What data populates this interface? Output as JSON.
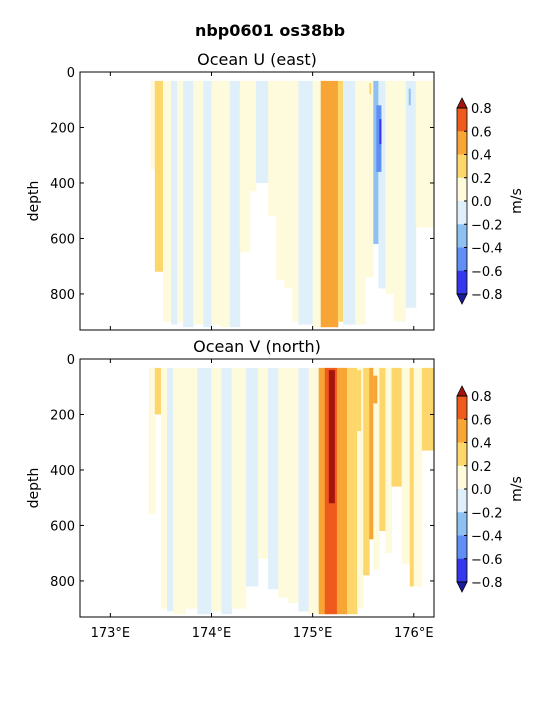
{
  "figure_title": "nbp0601 os38bb",
  "colors": {
    "levels": [
      -0.8,
      -0.6,
      -0.4,
      -0.2,
      0.0,
      0.2,
      0.4,
      0.6,
      0.8
    ],
    "bins": [
      "#3636ee",
      "#5f8ef4",
      "#8ec1f2",
      "#dff0fa",
      "#fefadc",
      "#fdd66c",
      "#f7a534",
      "#ef5b1c"
    ],
    "under": "#1a1aa0",
    "over": "#a5150d"
  },
  "chart_data": [
    {
      "type": "heatmap",
      "title": "Ocean U (east)",
      "ylabel": "depth",
      "xlabel": "",
      "x_ticks": [
        "173°E",
        "174°E",
        "175°E",
        "176°E"
      ],
      "x_tick_values": [
        173,
        174,
        175,
        176
      ],
      "y_ticks": [
        "0",
        "200",
        "400",
        "600",
        "800"
      ],
      "y_tick_values": [
        0,
        200,
        400,
        600,
        800
      ],
      "xlim": [
        172.7,
        176.2
      ],
      "ylim": [
        930,
        0
      ],
      "colorbar": {
        "label": "m/s",
        "ticks": [
          "0.8",
          "0.6",
          "0.4",
          "0.2",
          "0.0",
          "−0.2",
          "−0.4",
          "−0.6",
          "−0.8"
        ],
        "extend": "both"
      },
      "columns": [
        {
          "lon0": 173.4,
          "lon1": 173.44,
          "depth_max": 350,
          "value": 0.15
        },
        {
          "lon0": 173.44,
          "lon1": 173.52,
          "depth_max": 720,
          "value": 0.25
        },
        {
          "lon0": 173.52,
          "lon1": 173.6,
          "depth_max": 900,
          "value": 0.1
        },
        {
          "lon0": 173.6,
          "lon1": 173.66,
          "depth_max": 910,
          "value": -0.1
        },
        {
          "lon0": 173.66,
          "lon1": 173.72,
          "depth_max": 900,
          "value": 0.05
        },
        {
          "lon0": 173.72,
          "lon1": 173.82,
          "depth_max": 920,
          "value": -0.1
        },
        {
          "lon0": 173.82,
          "lon1": 173.92,
          "depth_max": 910,
          "value": 0.12
        },
        {
          "lon0": 173.92,
          "lon1": 174.0,
          "depth_max": 920,
          "value": -0.05
        },
        {
          "lon0": 174.0,
          "lon1": 174.08,
          "depth_max": 910,
          "value": 0.1
        },
        {
          "lon0": 174.08,
          "lon1": 174.18,
          "depth_max": 920,
          "value": 0.05
        },
        {
          "lon0": 174.18,
          "lon1": 174.28,
          "depth_max": 920,
          "value": -0.1
        },
        {
          "lon0": 174.28,
          "lon1": 174.38,
          "depth_max": 650,
          "value": 0.05
        },
        {
          "lon0": 174.38,
          "lon1": 174.44,
          "depth_max": 430,
          "value": 0.05
        },
        {
          "lon0": 174.44,
          "lon1": 174.56,
          "depth_max": 400,
          "value": -0.1
        },
        {
          "lon0": 174.56,
          "lon1": 174.64,
          "depth_max": 520,
          "value": 0.05
        },
        {
          "lon0": 174.64,
          "lon1": 174.72,
          "depth_max": 750,
          "value": 0.1
        },
        {
          "lon0": 174.72,
          "lon1": 174.8,
          "depth_max": 780,
          "value": 0.05
        },
        {
          "lon0": 174.8,
          "lon1": 174.86,
          "depth_max": 900,
          "value": 0.1
        },
        {
          "lon0": 174.86,
          "lon1": 175.0,
          "depth_max": 910,
          "value": -0.1
        },
        {
          "lon0": 175.0,
          "lon1": 175.08,
          "depth_max": 920,
          "value": 0.15
        },
        {
          "lon0": 175.08,
          "lon1": 175.25,
          "depth_max": 920,
          "value": 0.45
        },
        {
          "lon0": 175.25,
          "lon1": 175.3,
          "depth_max": 900,
          "value": 0.25
        },
        {
          "lon0": 175.3,
          "lon1": 175.42,
          "depth_max": 910,
          "value": -0.1
        },
        {
          "lon0": 175.42,
          "lon1": 175.52,
          "depth_max": 910,
          "value": 0.1
        },
        {
          "lon0": 175.52,
          "lon1": 175.6,
          "depth_max": 740,
          "value": 0.05
        },
        {
          "lon0": 175.6,
          "lon1": 175.65,
          "depth_max": 620,
          "value": -0.2
        },
        {
          "lon0": 175.65,
          "lon1": 175.72,
          "depth_max": 780,
          "value": -0.05
        },
        {
          "lon0": 175.72,
          "lon1": 175.8,
          "depth_max": 800,
          "value": 0.05
        },
        {
          "lon0": 175.8,
          "lon1": 175.92,
          "depth_max": 900,
          "value": 0.08
        },
        {
          "lon0": 175.92,
          "lon1": 176.02,
          "depth_max": 850,
          "value": -0.1
        },
        {
          "lon0": 176.02,
          "lon1": 176.2,
          "depth_max": 560,
          "value": 0.05
        }
      ],
      "patches": [
        {
          "lon0": 175.63,
          "lon1": 175.68,
          "d0": 120,
          "d1": 360,
          "value": -0.45
        },
        {
          "lon0": 175.66,
          "lon1": 175.68,
          "d0": 170,
          "d1": 260,
          "value": -0.65
        },
        {
          "lon0": 175.56,
          "lon1": 175.58,
          "d0": 40,
          "d1": 80,
          "value": 0.3
        },
        {
          "lon0": 175.95,
          "lon1": 175.97,
          "d0": 60,
          "d1": 120,
          "value": -0.3
        }
      ]
    },
    {
      "type": "heatmap",
      "title": "Ocean V (north)",
      "ylabel": "depth",
      "xlabel": "",
      "x_ticks": [
        "173°E",
        "174°E",
        "175°E",
        "176°E"
      ],
      "x_tick_values": [
        173,
        174,
        175,
        176
      ],
      "y_ticks": [
        "0",
        "200",
        "400",
        "600",
        "800"
      ],
      "y_tick_values": [
        0,
        200,
        400,
        600,
        800
      ],
      "xlim": [
        172.7,
        176.2
      ],
      "ylim": [
        930,
        0
      ],
      "colorbar": {
        "label": "m/s",
        "ticks": [
          "0.8",
          "0.6",
          "0.4",
          "0.2",
          "0.0",
          "−0.2",
          "−0.4",
          "−0.6",
          "−0.8"
        ],
        "extend": "both"
      },
      "columns": [
        {
          "lon0": 173.38,
          "lon1": 173.44,
          "depth_max": 560,
          "value": 0.1
        },
        {
          "lon0": 173.44,
          "lon1": 173.5,
          "depth_max": 200,
          "value": 0.25
        },
        {
          "lon0": 173.5,
          "lon1": 173.56,
          "depth_max": 900,
          "value": 0.05
        },
        {
          "lon0": 173.56,
          "lon1": 173.62,
          "depth_max": 910,
          "value": -0.1
        },
        {
          "lon0": 173.62,
          "lon1": 173.74,
          "depth_max": 920,
          "value": 0.05
        },
        {
          "lon0": 173.74,
          "lon1": 173.86,
          "depth_max": 900,
          "value": 0.1
        },
        {
          "lon0": 173.86,
          "lon1": 174.0,
          "depth_max": 920,
          "value": -0.1
        },
        {
          "lon0": 174.0,
          "lon1": 174.1,
          "depth_max": 910,
          "value": 0.05
        },
        {
          "lon0": 174.1,
          "lon1": 174.2,
          "depth_max": 920,
          "value": -0.1
        },
        {
          "lon0": 174.2,
          "lon1": 174.34,
          "depth_max": 900,
          "value": 0.05
        },
        {
          "lon0": 174.34,
          "lon1": 174.46,
          "depth_max": 820,
          "value": -0.08
        },
        {
          "lon0": 174.46,
          "lon1": 174.56,
          "depth_max": 720,
          "value": 0.05
        },
        {
          "lon0": 174.56,
          "lon1": 174.66,
          "depth_max": 830,
          "value": -0.1
        },
        {
          "lon0": 174.66,
          "lon1": 174.76,
          "depth_max": 860,
          "value": 0.08
        },
        {
          "lon0": 174.76,
          "lon1": 174.86,
          "depth_max": 880,
          "value": 0.05
        },
        {
          "lon0": 174.86,
          "lon1": 174.96,
          "depth_max": 910,
          "value": -0.1
        },
        {
          "lon0": 174.96,
          "lon1": 175.06,
          "depth_max": 920,
          "value": 0.1
        },
        {
          "lon0": 175.06,
          "lon1": 175.12,
          "depth_max": 920,
          "value": 0.45
        },
        {
          "lon0": 175.12,
          "lon1": 175.24,
          "depth_max": 920,
          "value": 0.65
        },
        {
          "lon0": 175.24,
          "lon1": 175.34,
          "depth_max": 920,
          "value": 0.45
        },
        {
          "lon0": 175.34,
          "lon1": 175.44,
          "depth_max": 920,
          "value": 0.25
        },
        {
          "lon0": 175.44,
          "lon1": 175.5,
          "depth_max": 900,
          "value": 0.1
        },
        {
          "lon0": 175.5,
          "lon1": 175.56,
          "depth_max": 780,
          "value": 0.3
        },
        {
          "lon0": 175.56,
          "lon1": 175.6,
          "depth_max": 650,
          "value": 0.45
        },
        {
          "lon0": 175.6,
          "lon1": 175.66,
          "depth_max": 760,
          "value": 0.1
        },
        {
          "lon0": 175.66,
          "lon1": 175.72,
          "depth_max": 620,
          "value": 0.25
        },
        {
          "lon0": 175.72,
          "lon1": 175.78,
          "depth_max": 700,
          "value": 0.05
        },
        {
          "lon0": 175.78,
          "lon1": 175.88,
          "depth_max": 460,
          "value": 0.25
        },
        {
          "lon0": 175.88,
          "lon1": 175.96,
          "depth_max": 740,
          "value": 0.05
        },
        {
          "lon0": 175.96,
          "lon1": 176.0,
          "depth_max": 820,
          "value": 0.25
        },
        {
          "lon0": 176.0,
          "lon1": 176.08,
          "depth_max": 820,
          "value": 0.05
        },
        {
          "lon0": 176.08,
          "lon1": 176.2,
          "depth_max": 330,
          "value": 0.25
        }
      ],
      "patches": [
        {
          "lon0": 175.16,
          "lon1": 175.22,
          "d0": 40,
          "d1": 520,
          "value": 0.85
        },
        {
          "lon0": 175.44,
          "lon1": 175.48,
          "d0": 40,
          "d1": 260,
          "value": 0.3
        },
        {
          "lon0": 175.6,
          "lon1": 175.64,
          "d0": 60,
          "d1": 160,
          "value": 0.45
        }
      ]
    }
  ]
}
